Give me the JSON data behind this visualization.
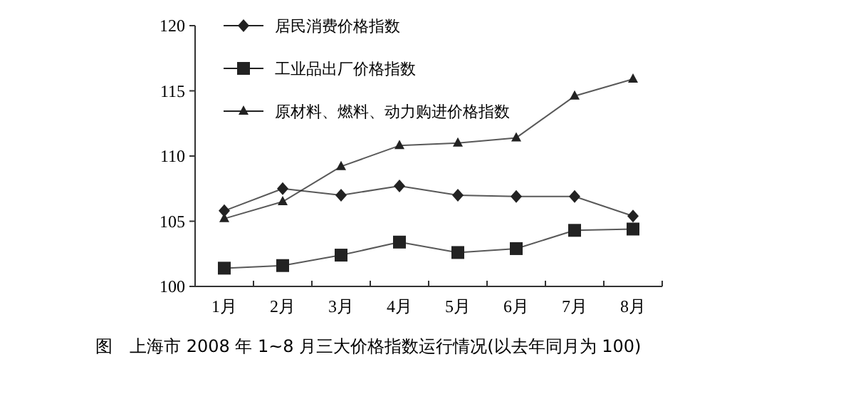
{
  "chart_data": {
    "type": "line",
    "annotations": [
      "图　上海市 2008 年 1~8 月三大价格指数运行情况(以去年同月为 100)"
    ],
    "categories": [
      "1月",
      "2月",
      "3月",
      "4月",
      "5月",
      "6月",
      "7月",
      "8月"
    ],
    "series": [
      {
        "name": "居民消费价格指数",
        "color": "#222222",
        "marker": "diamond",
        "values": [
          105.8,
          107.5,
          107.0,
          107.7,
          107.0,
          106.9,
          106.9,
          105.4
        ]
      },
      {
        "name": "工业品出厂价格指数",
        "color": "#222222",
        "marker": "square",
        "values": [
          101.4,
          101.6,
          102.4,
          103.4,
          102.6,
          102.9,
          104.3,
          104.4
        ]
      },
      {
        "name": "原材料、燃料、动力购进价格指数",
        "color": "#222222",
        "marker": "triangle",
        "values": [
          105.2,
          106.5,
          109.2,
          110.8,
          111.0,
          111.4,
          114.6,
          115.9
        ]
      }
    ],
    "ylim": [
      100,
      120
    ],
    "yticks": [
      100,
      105,
      110,
      115,
      120
    ],
    "legend": "top left",
    "grid": false,
    "line_style": "solid"
  }
}
